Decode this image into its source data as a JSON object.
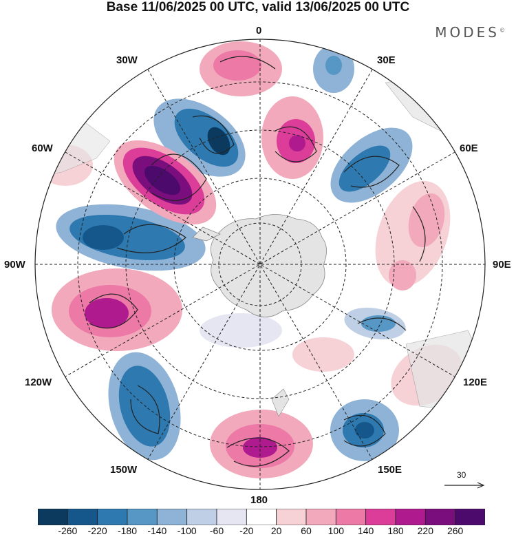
{
  "title": "Base 11/06/2025 00 UTC, valid 13/06/2025 00 UTC",
  "logo": {
    "text": "MODES",
    "mark": "©"
  },
  "longitude_labels": {
    "lon_0": "0",
    "lon_30e": "30E",
    "lon_60e": "60E",
    "lon_90e": "90E",
    "lon_120e": "120E",
    "lon_150e": "150E",
    "lon_180": "180",
    "lon_150w": "150W",
    "lon_120w": "120W",
    "lon_90w": "90W",
    "lon_60w": "60W",
    "lon_30w": "30W"
  },
  "vector_reference": {
    "label": "30"
  },
  "colorbar": {
    "labels": [
      "-260",
      "-220",
      "-180",
      "-140",
      "-100",
      "-60",
      "-20",
      "20",
      "60",
      "100",
      "140",
      "180",
      "220",
      "260"
    ],
    "colors": [
      "#0b3a5e",
      "#15578a",
      "#2d79b0",
      "#5697c5",
      "#8fb3d6",
      "#bfcfe5",
      "#e6e6f2",
      "#ffffff",
      "#f6d2d6",
      "#f2a9bb",
      "#ec79a6",
      "#db3d98",
      "#b01a8f",
      "#7a0e7d",
      "#4b0a6c"
    ]
  },
  "colors": {
    "land": "#e4e4e4",
    "grid": "#222222",
    "coast": "#888888"
  }
}
